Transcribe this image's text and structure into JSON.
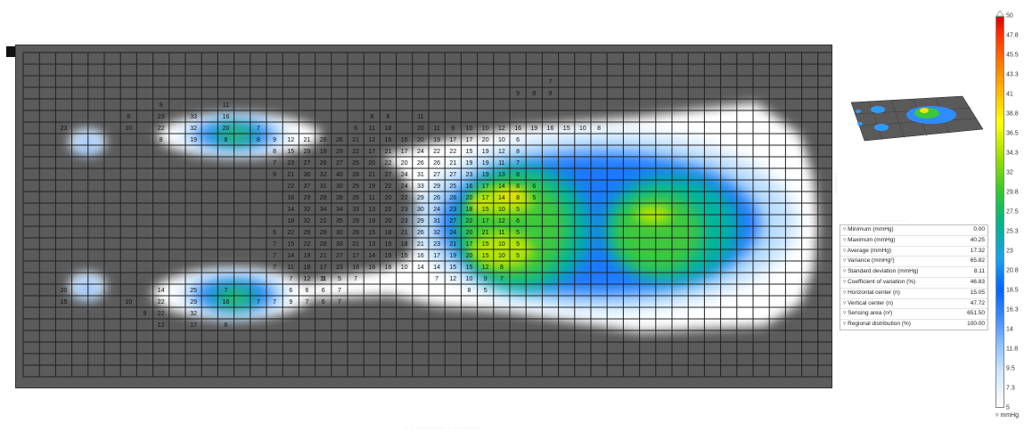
{
  "pressure_map": {
    "grid": {
      "cols": 50,
      "rows": 28
    },
    "cells": [
      [
        4,
        8,
        "9"
      ],
      [
        4,
        12,
        "11"
      ],
      [
        5,
        6,
        "8"
      ],
      [
        5,
        8,
        "23"
      ],
      [
        5,
        10,
        "33"
      ],
      [
        5,
        12,
        "16"
      ],
      [
        6,
        6,
        "10"
      ],
      [
        6,
        8,
        "22"
      ],
      [
        6,
        10,
        "32"
      ],
      [
        6,
        12,
        "20"
      ],
      [
        6,
        14,
        "7"
      ],
      [
        7,
        8,
        "8"
      ],
      [
        7,
        10,
        "19"
      ],
      [
        7,
        12,
        "8"
      ],
      [
        6,
        2,
        "23"
      ],
      [
        20,
        2,
        "20"
      ],
      [
        21,
        2,
        "15"
      ],
      [
        20,
        8,
        "14"
      ],
      [
        20,
        10,
        "25"
      ],
      [
        20,
        12,
        "7"
      ],
      [
        21,
        6,
        "10"
      ],
      [
        21,
        8,
        "22"
      ],
      [
        21,
        10,
        "29"
      ],
      [
        21,
        12,
        "16"
      ],
      [
        22,
        7,
        "9"
      ],
      [
        22,
        8,
        "22"
      ],
      [
        22,
        10,
        "32"
      ],
      [
        23,
        8,
        "12"
      ],
      [
        23,
        10,
        "17"
      ],
      [
        23,
        12,
        "8"
      ],
      [
        21,
        14,
        "7"
      ],
      [
        21,
        15,
        "7"
      ],
      [
        21,
        16,
        "9"
      ],
      [
        21,
        17,
        "7"
      ],
      [
        21,
        18,
        "6"
      ],
      [
        21,
        19,
        "7"
      ],
      [
        20,
        16,
        "6"
      ],
      [
        20,
        17,
        "6"
      ],
      [
        20,
        18,
        "6"
      ],
      [
        20,
        19,
        "7"
      ],
      [
        19,
        18,
        "5"
      ],
      [
        19,
        19,
        "5"
      ],
      [
        19,
        20,
        "7"
      ],
      [
        5,
        21,
        "8"
      ],
      [
        5,
        22,
        "8"
      ],
      [
        5,
        24,
        "11"
      ],
      [
        6,
        20,
        "6"
      ],
      [
        6,
        21,
        "11"
      ],
      [
        6,
        22,
        "18"
      ],
      [
        6,
        24,
        "20"
      ],
      [
        6,
        25,
        "11"
      ],
      [
        6,
        26,
        "6"
      ],
      [
        6,
        27,
        "10"
      ],
      [
        6,
        28,
        "10"
      ],
      [
        6,
        29,
        "12"
      ],
      [
        6,
        30,
        "16"
      ],
      [
        6,
        31,
        "19"
      ],
      [
        6,
        32,
        "16"
      ],
      [
        6,
        33,
        "15"
      ],
      [
        6,
        34,
        "10"
      ],
      [
        6,
        35,
        "8"
      ],
      [
        7,
        14,
        "8"
      ],
      [
        7,
        15,
        "9"
      ],
      [
        7,
        16,
        "12"
      ],
      [
        7,
        17,
        "21"
      ],
      [
        7,
        18,
        "26"
      ],
      [
        7,
        19,
        "26"
      ],
      [
        7,
        20,
        "21"
      ],
      [
        7,
        21,
        "12"
      ],
      [
        7,
        22,
        "15"
      ],
      [
        7,
        23,
        "15"
      ],
      [
        7,
        24,
        "20"
      ],
      [
        7,
        25,
        "19"
      ],
      [
        7,
        26,
        "17"
      ],
      [
        7,
        27,
        "17"
      ],
      [
        7,
        28,
        "20"
      ],
      [
        7,
        29,
        "10"
      ],
      [
        7,
        30,
        "6"
      ],
      [
        8,
        15,
        "8"
      ],
      [
        8,
        16,
        "15"
      ],
      [
        8,
        17,
        "29"
      ],
      [
        8,
        18,
        "19"
      ],
      [
        8,
        19,
        "29"
      ],
      [
        8,
        20,
        "22"
      ],
      [
        8,
        21,
        "17"
      ],
      [
        8,
        22,
        "21"
      ],
      [
        8,
        23,
        "17"
      ],
      [
        8,
        24,
        "24"
      ],
      [
        8,
        25,
        "22"
      ],
      [
        8,
        26,
        "22"
      ],
      [
        8,
        27,
        "15"
      ],
      [
        8,
        28,
        "19"
      ],
      [
        8,
        29,
        "12"
      ],
      [
        8,
        30,
        "8"
      ],
      [
        9,
        15,
        "7"
      ],
      [
        9,
        16,
        "23"
      ],
      [
        9,
        17,
        "27"
      ],
      [
        9,
        18,
        "26"
      ],
      [
        9,
        19,
        "27"
      ],
      [
        9,
        20,
        "25"
      ],
      [
        9,
        21,
        "20"
      ],
      [
        9,
        22,
        "22"
      ],
      [
        9,
        23,
        "20"
      ],
      [
        9,
        24,
        "26"
      ],
      [
        9,
        25,
        "26"
      ],
      [
        9,
        26,
        "21"
      ],
      [
        9,
        27,
        "19"
      ],
      [
        9,
        28,
        "19"
      ],
      [
        9,
        29,
        "11"
      ],
      [
        9,
        30,
        "7"
      ],
      [
        10,
        15,
        "9"
      ],
      [
        10,
        16,
        "21"
      ],
      [
        10,
        17,
        "30"
      ],
      [
        10,
        18,
        "32"
      ],
      [
        10,
        19,
        "40"
      ],
      [
        10,
        20,
        "28"
      ],
      [
        10,
        21,
        "21"
      ],
      [
        10,
        22,
        "27"
      ],
      [
        10,
        23,
        "24"
      ],
      [
        10,
        24,
        "31"
      ],
      [
        10,
        25,
        "27"
      ],
      [
        10,
        26,
        "27"
      ],
      [
        10,
        27,
        "23"
      ],
      [
        10,
        28,
        "19"
      ],
      [
        10,
        29,
        "13"
      ],
      [
        10,
        30,
        "8"
      ],
      [
        11,
        16,
        "22"
      ],
      [
        11,
        17,
        "37"
      ],
      [
        11,
        18,
        "31"
      ],
      [
        11,
        19,
        "30"
      ],
      [
        11,
        20,
        "25"
      ],
      [
        11,
        21,
        "19"
      ],
      [
        11,
        22,
        "22"
      ],
      [
        11,
        23,
        "24"
      ],
      [
        11,
        24,
        "33"
      ],
      [
        11,
        25,
        "29"
      ],
      [
        11,
        26,
        "25"
      ],
      [
        11,
        27,
        "16"
      ],
      [
        11,
        28,
        "17"
      ],
      [
        11,
        29,
        "14"
      ],
      [
        11,
        30,
        "8"
      ],
      [
        11,
        31,
        "6"
      ],
      [
        12,
        16,
        "16"
      ],
      [
        12,
        17,
        "29"
      ],
      [
        12,
        18,
        "28"
      ],
      [
        12,
        19,
        "28"
      ],
      [
        12,
        20,
        "26"
      ],
      [
        12,
        21,
        "11"
      ],
      [
        12,
        22,
        "20"
      ],
      [
        12,
        23,
        "22"
      ],
      [
        12,
        24,
        "29"
      ],
      [
        12,
        25,
        "26"
      ],
      [
        12,
        26,
        "26"
      ],
      [
        12,
        27,
        "20"
      ],
      [
        12,
        28,
        "17"
      ],
      [
        12,
        29,
        "14"
      ],
      [
        12,
        30,
        "8"
      ],
      [
        12,
        31,
        "5"
      ],
      [
        13,
        16,
        "14"
      ],
      [
        13,
        17,
        "32"
      ],
      [
        13,
        18,
        "34"
      ],
      [
        13,
        19,
        "34"
      ],
      [
        13,
        20,
        "33"
      ],
      [
        13,
        21,
        "13"
      ],
      [
        13,
        22,
        "22"
      ],
      [
        13,
        23,
        "23"
      ],
      [
        13,
        24,
        "30"
      ],
      [
        13,
        25,
        "24"
      ],
      [
        13,
        26,
        "23"
      ],
      [
        13,
        27,
        "18"
      ],
      [
        13,
        28,
        "15"
      ],
      [
        13,
        29,
        "10"
      ],
      [
        13,
        30,
        "5"
      ],
      [
        14,
        16,
        "18"
      ],
      [
        14,
        17,
        "32"
      ],
      [
        14,
        18,
        "22"
      ],
      [
        14,
        19,
        "35"
      ],
      [
        14,
        20,
        "29"
      ],
      [
        14,
        21,
        "19"
      ],
      [
        14,
        22,
        "20"
      ],
      [
        14,
        23,
        "23"
      ],
      [
        14,
        24,
        "29"
      ],
      [
        14,
        25,
        "31"
      ],
      [
        14,
        26,
        "27"
      ],
      [
        14,
        27,
        "22"
      ],
      [
        14,
        28,
        "17"
      ],
      [
        14,
        29,
        "12"
      ],
      [
        14,
        30,
        "6"
      ],
      [
        15,
        15,
        "6"
      ],
      [
        15,
        16,
        "22"
      ],
      [
        15,
        17,
        "29"
      ],
      [
        15,
        18,
        "28"
      ],
      [
        15,
        19,
        "30"
      ],
      [
        15,
        20,
        "28"
      ],
      [
        15,
        21,
        "15"
      ],
      [
        15,
        22,
        "18"
      ],
      [
        15,
        23,
        "21"
      ],
      [
        15,
        24,
        "26"
      ],
      [
        15,
        25,
        "32"
      ],
      [
        15,
        26,
        "24"
      ],
      [
        15,
        27,
        "20"
      ],
      [
        15,
        28,
        "21"
      ],
      [
        15,
        29,
        "11"
      ],
      [
        15,
        30,
        "5"
      ],
      [
        16,
        15,
        "7"
      ],
      [
        16,
        16,
        "15"
      ],
      [
        16,
        17,
        "22"
      ],
      [
        16,
        18,
        "28"
      ],
      [
        16,
        19,
        "33"
      ],
      [
        16,
        20,
        "21"
      ],
      [
        16,
        21,
        "13"
      ],
      [
        16,
        22,
        "15"
      ],
      [
        16,
        23,
        "18"
      ],
      [
        16,
        24,
        "21"
      ],
      [
        16,
        25,
        "23"
      ],
      [
        16,
        26,
        "21"
      ],
      [
        16,
        27,
        "17"
      ],
      [
        16,
        28,
        "15"
      ],
      [
        16,
        29,
        "10"
      ],
      [
        16,
        30,
        "5"
      ],
      [
        17,
        15,
        "7"
      ],
      [
        17,
        16,
        "14"
      ],
      [
        17,
        17,
        "19"
      ],
      [
        17,
        18,
        "21"
      ],
      [
        17,
        19,
        "27"
      ],
      [
        17,
        20,
        "17"
      ],
      [
        17,
        21,
        "14"
      ],
      [
        17,
        22,
        "15"
      ],
      [
        17,
        23,
        "15"
      ],
      [
        17,
        24,
        "16"
      ],
      [
        17,
        25,
        "17"
      ],
      [
        17,
        26,
        "19"
      ],
      [
        17,
        27,
        "20"
      ],
      [
        17,
        28,
        "15"
      ],
      [
        17,
        29,
        "10"
      ],
      [
        17,
        30,
        "5"
      ],
      [
        18,
        15,
        "7"
      ],
      [
        18,
        16,
        "11"
      ],
      [
        18,
        17,
        "18"
      ],
      [
        18,
        18,
        "17"
      ],
      [
        18,
        19,
        "23"
      ],
      [
        18,
        20,
        "16"
      ],
      [
        18,
        21,
        "16"
      ],
      [
        18,
        22,
        "16"
      ],
      [
        18,
        23,
        "10"
      ],
      [
        18,
        24,
        "14"
      ],
      [
        18,
        25,
        "14"
      ],
      [
        18,
        26,
        "15"
      ],
      [
        18,
        27,
        "15"
      ],
      [
        18,
        28,
        "12"
      ],
      [
        18,
        29,
        "8"
      ],
      [
        19,
        16,
        "7"
      ],
      [
        19,
        17,
        "12"
      ],
      [
        19,
        18,
        "11"
      ],
      [
        19,
        25,
        "7"
      ],
      [
        19,
        26,
        "12"
      ],
      [
        19,
        27,
        "10"
      ],
      [
        19,
        28,
        "9"
      ],
      [
        19,
        29,
        "7"
      ],
      [
        20,
        27,
        "8"
      ],
      [
        20,
        28,
        "5"
      ],
      [
        3,
        30,
        "9"
      ],
      [
        3,
        31,
        "8"
      ],
      [
        3,
        32,
        "9"
      ],
      [
        2,
        32,
        "7"
      ]
    ]
  },
  "stats": [
    {
      "label": "Minimum (mmHg)",
      "value": "0.00"
    },
    {
      "label": "Maximum (mmHg)",
      "value": "40.25"
    },
    {
      "label": "Average (mmHg)",
      "value": "17.32"
    },
    {
      "label": "Variance (mmHg²)",
      "value": "65.82"
    },
    {
      "label": "Standard deviation (mmHg)",
      "value": "8.11"
    },
    {
      "label": "Coefficient of variation (%)",
      "value": "46.83"
    },
    {
      "label": "Horizontal center (n)",
      "value": "15.05"
    },
    {
      "label": "Vertical center (n)",
      "value": "47.72"
    },
    {
      "label": "Sensing area (n²)",
      "value": "651.50"
    },
    {
      "label": "Regional distribution (%)",
      "value": "100.00"
    }
  ],
  "legend": {
    "ticks": [
      "50",
      "47.8",
      "45.5",
      "43.3",
      "41",
      "38.8",
      "36.5",
      "34.3",
      "32",
      "29.8",
      "27.5",
      "25.3",
      "23",
      "20.8",
      "18.5",
      "16.3",
      "14",
      "11.8",
      "9.5",
      "7.3",
      "5"
    ],
    "unit": "mmHg",
    "colors": {
      "max": "#d40000",
      "mid": "#ffff00",
      "low": "#0064ff",
      "min": "#ffffff"
    }
  }
}
